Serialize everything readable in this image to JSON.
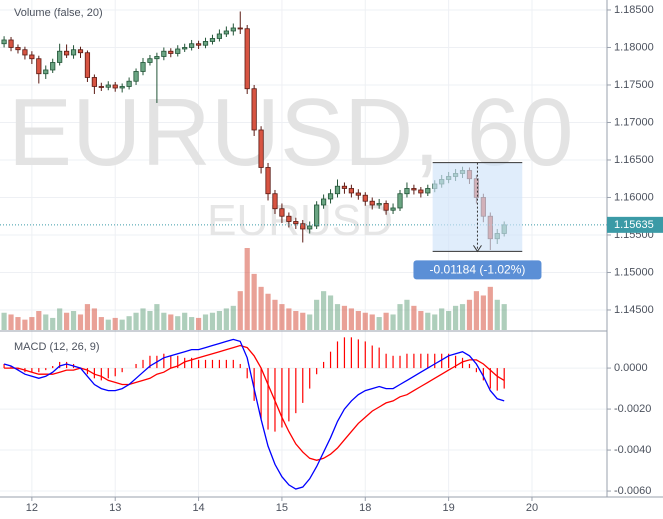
{
  "chart_data": {
    "type": "candlestick",
    "watermark": "EURUSD, 60",
    "watermark_symbol": "EURUSD",
    "volume_title": "Volume (false, 20)",
    "up_color": "#6ba583",
    "down_color": "#d75442",
    "grid": true,
    "open": [
      1.1805,
      1.181,
      1.18,
      1.1797,
      1.179,
      1.1785,
      1.1765,
      1.177,
      1.178,
      1.1795,
      1.179,
      1.1797,
      1.1793,
      1.176,
      1.1748,
      1.1747,
      1.175,
      1.1746,
      1.1748,
      1.1755,
      1.1768,
      1.178,
      1.1785,
      1.1788,
      1.1795,
      1.1792,
      1.1798,
      1.18,
      1.1805,
      1.1803,
      1.1808,
      1.1812,
      1.1818,
      1.1822,
      1.1826,
      1.1825,
      1.1745,
      1.169,
      1.164,
      1.1605,
      1.1585,
      1.1575,
      1.1568,
      1.1565,
      1.1558,
      1.1562,
      1.159,
      1.1598,
      1.1605,
      1.1615,
      1.1612,
      1.1606,
      1.1603,
      1.1595,
      1.159,
      1.1592,
      1.1583,
      1.1586,
      1.1605,
      1.1612,
      1.161,
      1.1606,
      1.1612,
      1.1618,
      1.1624,
      1.1628,
      1.1632,
      1.1636,
      1.1625,
      1.16,
      1.1575,
      1.1545,
      1.1552
    ],
    "high": [
      1.1815,
      1.1814,
      1.1804,
      1.1801,
      1.1795,
      1.1789,
      1.1776,
      1.1785,
      1.1805,
      1.1804,
      1.1803,
      1.1801,
      1.1796,
      1.1764,
      1.1753,
      1.1755,
      1.1754,
      1.1752,
      1.176,
      1.1772,
      1.1786,
      1.179,
      1.1793,
      1.18,
      1.1799,
      1.1803,
      1.1805,
      1.181,
      1.1809,
      1.1813,
      1.1817,
      1.1824,
      1.1828,
      1.1832,
      1.1848,
      1.183,
      1.175,
      1.1695,
      1.1646,
      1.161,
      1.1592,
      1.158,
      1.1573,
      1.157,
      1.1568,
      1.1595,
      1.1604,
      1.1611,
      1.1624,
      1.162,
      1.1617,
      1.1611,
      1.1607,
      1.16,
      1.1598,
      1.1596,
      1.1592,
      1.161,
      1.162,
      1.1617,
      1.1614,
      1.1617,
      1.1623,
      1.163,
      1.1634,
      1.1638,
      1.1641,
      1.164,
      1.163,
      1.1605,
      1.158,
      1.1558,
      1.1568
    ],
    "low": [
      1.18,
      1.1795,
      1.1792,
      1.1784,
      1.1778,
      1.1752,
      1.1758,
      1.1766,
      1.1776,
      1.1786,
      1.1785,
      1.1786,
      1.1754,
      1.1738,
      1.1742,
      1.1743,
      1.1741,
      1.174,
      1.1744,
      1.175,
      1.1763,
      1.1776,
      1.1726,
      1.1783,
      1.1787,
      1.1788,
      1.1794,
      1.1796,
      1.1798,
      1.1799,
      1.1804,
      1.1808,
      1.1814,
      1.1816,
      1.1818,
      1.1738,
      1.1682,
      1.1632,
      1.1596,
      1.1578,
      1.1566,
      1.156,
      1.1558,
      1.154,
      1.1552,
      1.1558,
      1.1585,
      1.1592,
      1.16,
      1.1605,
      1.16,
      1.1597,
      1.1589,
      1.1584,
      1.1585,
      1.1577,
      1.1578,
      1.1582,
      1.16,
      1.1604,
      1.16,
      1.1602,
      1.1607,
      1.1613,
      1.1619,
      1.1622,
      1.1626,
      1.1618,
      1.1592,
      1.1567,
      1.153,
      1.1538,
      1.1548
    ],
    "close": [
      1.181,
      1.18,
      1.1797,
      1.179,
      1.1785,
      1.1765,
      1.177,
      1.178,
      1.1795,
      1.179,
      1.1797,
      1.1793,
      1.176,
      1.1748,
      1.1747,
      1.175,
      1.1746,
      1.1748,
      1.1755,
      1.1768,
      1.178,
      1.1785,
      1.1788,
      1.1795,
      1.1792,
      1.1798,
      1.18,
      1.1805,
      1.1803,
      1.1808,
      1.1812,
      1.1818,
      1.1822,
      1.1826,
      1.1825,
      1.1745,
      1.169,
      1.164,
      1.1605,
      1.1585,
      1.1575,
      1.1568,
      1.1565,
      1.1558,
      1.1562,
      1.159,
      1.1598,
      1.1605,
      1.1615,
      1.1612,
      1.1606,
      1.1603,
      1.1595,
      1.159,
      1.1592,
      1.1583,
      1.1586,
      1.1605,
      1.1612,
      1.161,
      1.1606,
      1.1612,
      1.1618,
      1.1624,
      1.1628,
      1.1632,
      1.1636,
      1.1625,
      1.16,
      1.1575,
      1.1545,
      1.1552,
      1.15635
    ],
    "volume": [
      20,
      18,
      15,
      12,
      15,
      22,
      18,
      14,
      25,
      20,
      22,
      18,
      30,
      25,
      15,
      12,
      14,
      12,
      16,
      20,
      25,
      22,
      30,
      20,
      18,
      16,
      20,
      15,
      14,
      18,
      20,
      22,
      25,
      28,
      45,
      95,
      65,
      50,
      42,
      35,
      30,
      25,
      22,
      20,
      18,
      35,
      45,
      40,
      30,
      28,
      25,
      22,
      20,
      18,
      15,
      20,
      18,
      30,
      35,
      28,
      22,
      20,
      18,
      25,
      22,
      28,
      30,
      35,
      45,
      40,
      50,
      35,
      30
    ],
    "xlim": [
      -0.3,
      86.8
    ],
    "xticks": [
      {
        "value": 4,
        "label": "12"
      },
      {
        "value": 16,
        "label": "13"
      },
      {
        "value": 28,
        "label": "14"
      },
      {
        "value": 40,
        "label": "15"
      },
      {
        "value": 52,
        "label": "18"
      },
      {
        "value": 64,
        "label": "19"
      },
      {
        "value": 76,
        "label": "20"
      }
    ],
    "ylim": [
      1.14233,
      1.18633
    ],
    "yticks": [
      {
        "value": 1.145,
        "label": "1.14500"
      },
      {
        "value": 1.15,
        "label": "1.15000"
      },
      {
        "value": 1.155,
        "label": "1.15500"
      },
      {
        "value": 1.16,
        "label": "1.16000"
      },
      {
        "value": 1.165,
        "label": "1.16500"
      },
      {
        "value": 1.17,
        "label": "1.17000"
      },
      {
        "value": 1.175,
        "label": "1.17500"
      },
      {
        "value": 1.18,
        "label": "1.18000"
      },
      {
        "value": 1.185,
        "label": "1.18500"
      }
    ],
    "last_price": {
      "value": 1.15635,
      "label": "1.15635"
    },
    "measure": {
      "label": "-0.01184 (-1.02%)",
      "x_from": 61.7,
      "x_to": 74.6,
      "price_from": 1.16465,
      "price_to": 1.15281
    },
    "macd": {
      "title": "MACD (12, 26, 9)",
      "ylim": [
        -0.00629,
        0.00176
      ],
      "yticks": [
        {
          "value": 0,
          "label": "0.0000"
        },
        {
          "value": -0.002,
          "label": "-0.0020"
        },
        {
          "value": -0.004,
          "label": "-0.0040"
        },
        {
          "value": -0.006,
          "label": "-0.0060"
        }
      ],
      "macd": {
        "color": "#0000ff",
        "values": [
          0.0002,
          0.0001,
          -0.0001,
          -0.0003,
          -0.0004,
          -0.0005,
          -0.0004,
          -0.0002,
          0.0001,
          0.0002,
          0.0001,
          0.0,
          -0.0004,
          -0.0008,
          -0.001,
          -0.0011,
          -0.0011,
          -0.001,
          -0.0008,
          -0.0005,
          -0.0002,
          0.0001,
          0.0003,
          0.0005,
          0.0006,
          0.0007,
          0.0008,
          0.0009,
          0.0009,
          0.001,
          0.0011,
          0.0012,
          0.0013,
          0.0014,
          0.0013,
          0.0005,
          -0.001,
          -0.0025,
          -0.0038,
          -0.0047,
          -0.0053,
          -0.0057,
          -0.0059,
          -0.0058,
          -0.0054,
          -0.0048,
          -0.0041,
          -0.0034,
          -0.0026,
          -0.002,
          -0.0016,
          -0.0013,
          -0.0011,
          -0.001,
          -0.0009,
          -0.001,
          -0.001,
          -0.0008,
          -0.0006,
          -0.0004,
          -0.0002,
          0.0,
          0.0002,
          0.0004,
          0.0006,
          0.0007,
          0.0008,
          0.0006,
          0.0002,
          -0.0004,
          -0.0011,
          -0.0015,
          -0.0016
        ]
      },
      "signal": {
        "color": "#ff0000",
        "values": [
          0.0,
          0.0,
          0.0,
          -0.0001,
          -0.0002,
          -0.0003,
          -0.0003,
          -0.0003,
          -0.0002,
          -0.0001,
          -0.0001,
          0.0,
          -0.0001,
          -0.0003,
          -0.0004,
          -0.0006,
          -0.0007,
          -0.0008,
          -0.0008,
          -0.0007,
          -0.0006,
          -0.0005,
          -0.0003,
          -0.0002,
          0.0,
          0.0001,
          0.0003,
          0.0004,
          0.0005,
          0.0006,
          0.0007,
          0.0008,
          0.0009,
          0.001,
          0.0011,
          0.001,
          0.0006,
          0.0,
          -0.0008,
          -0.0016,
          -0.0024,
          -0.0031,
          -0.0037,
          -0.0041,
          -0.0044,
          -0.0045,
          -0.0044,
          -0.0042,
          -0.0039,
          -0.0035,
          -0.0031,
          -0.0027,
          -0.0024,
          -0.0021,
          -0.0019,
          -0.0017,
          -0.0016,
          -0.0014,
          -0.0013,
          -0.0011,
          -0.0009,
          -0.0007,
          -0.0005,
          -0.0003,
          -0.0001,
          0.0001,
          0.0003,
          0.0004,
          0.0004,
          0.0002,
          -0.0001,
          -0.0004,
          -0.0006
        ]
      },
      "histogram": {
        "color": "#ff0000",
        "values": [
          0.0002,
          0.0001,
          -0.0001,
          -0.0002,
          -0.0002,
          -0.0002,
          -0.0001,
          0.0001,
          0.0003,
          0.0003,
          0.0002,
          0.0,
          -0.0003,
          -0.0005,
          -0.0006,
          -0.0005,
          -0.0004,
          -0.0002,
          0.0,
          0.0002,
          0.0004,
          0.0006,
          0.0006,
          0.0007,
          0.0006,
          0.0006,
          0.0005,
          0.0005,
          0.0004,
          0.0004,
          0.0004,
          0.0004,
          0.0004,
          0.0004,
          0.0002,
          -0.0005,
          -0.0016,
          -0.0025,
          -0.003,
          -0.0031,
          -0.0029,
          -0.0026,
          -0.0022,
          -0.0017,
          -0.001,
          -0.0003,
          0.0003,
          0.0008,
          0.0013,
          0.0015,
          0.0015,
          0.0014,
          0.0013,
          0.0011,
          0.001,
          0.0007,
          0.0006,
          0.0006,
          0.0007,
          0.0007,
          0.0007,
          0.0007,
          0.0007,
          0.0007,
          0.0007,
          0.0006,
          0.0005,
          0.0002,
          -0.0002,
          -0.0006,
          -0.001,
          -0.0011,
          -0.001
        ]
      }
    }
  }
}
